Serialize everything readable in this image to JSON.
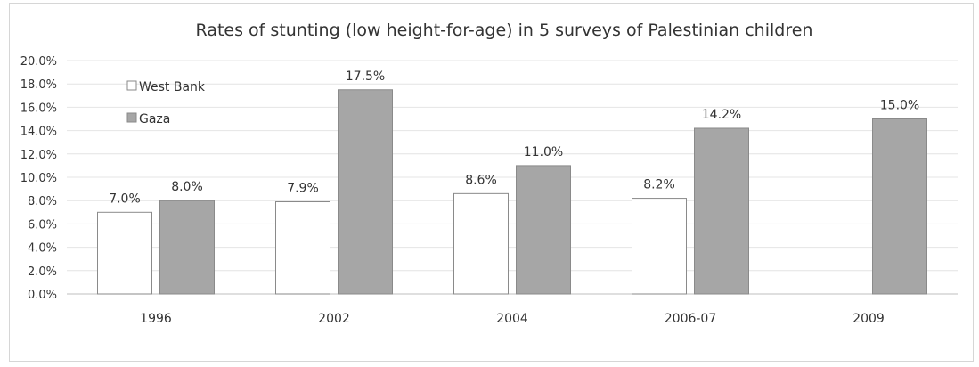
{
  "chart_data": {
    "type": "bar",
    "title": "Rates of stunting (low height-for-age) in 5 surveys of Palestinian children",
    "xlabel": "",
    "ylabel": "",
    "categories": [
      "1996",
      "2002",
      "2004",
      "2006-07",
      "2009"
    ],
    "series": [
      {
        "name": "West Bank",
        "values": [
          7.0,
          7.9,
          8.6,
          8.2,
          null
        ],
        "labels": [
          "7.0%",
          "7.9%",
          "8.6%",
          "8.2%",
          ""
        ],
        "color": "#ffffff",
        "stroke": "#8a8a8a"
      },
      {
        "name": "Gaza",
        "values": [
          8.0,
          17.5,
          11.0,
          14.2,
          15.0
        ],
        "labels": [
          "8.0%",
          "17.5%",
          "11.0%",
          "14.2%",
          "15.0%"
        ],
        "color": "#a6a6a6",
        "stroke": "#8a8a8a"
      }
    ],
    "ylim": [
      0,
      20
    ],
    "yticks": [
      "0.0%",
      "2.0%",
      "4.0%",
      "6.0%",
      "8.0%",
      "10.0%",
      "12.0%",
      "14.0%",
      "16.0%",
      "18.0%",
      "20.0%"
    ],
    "grid": true,
    "legend_position": "top-left"
  }
}
